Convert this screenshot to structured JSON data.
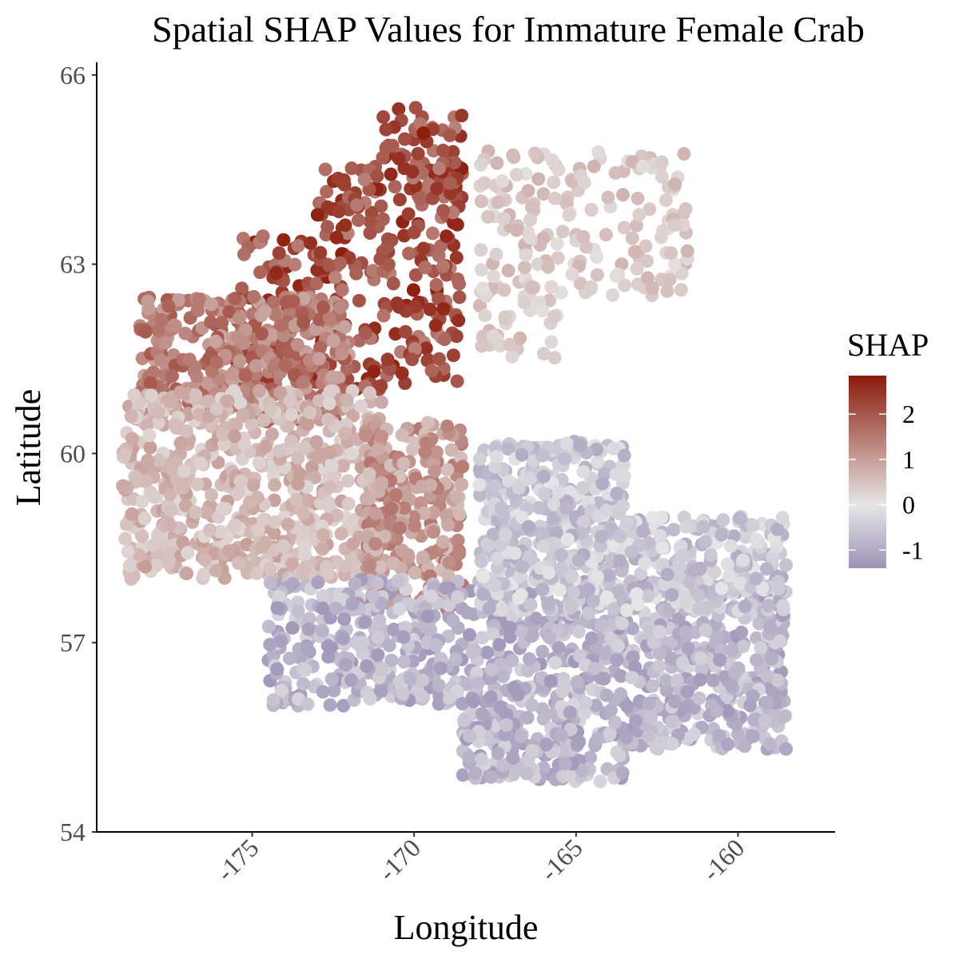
{
  "chart_data": {
    "type": "scatter",
    "title": "Spatial SHAP Values for Immature Female Crab",
    "xlabel": "Longitude",
    "ylabel": "Latitude",
    "xlim": [
      -179.8,
      -157.0
    ],
    "ylim": [
      54.0,
      66.2
    ],
    "x_ticks": [
      {
        "value": -175,
        "label": "-175"
      },
      {
        "value": -170,
        "label": "-170"
      },
      {
        "value": -165,
        "label": "-165"
      },
      {
        "value": -160,
        "label": "-160"
      }
    ],
    "y_ticks": [
      {
        "value": 54,
        "label": "54"
      },
      {
        "value": 57,
        "label": "57"
      },
      {
        "value": 60,
        "label": "60"
      },
      {
        "value": 63,
        "label": "63"
      },
      {
        "value": 66,
        "label": "66"
      }
    ],
    "grid": false,
    "color_scale": {
      "title": "SHAP",
      "min": -1.4,
      "max": 2.85,
      "low_color": "#9d93b7",
      "mid_color": "#e6e6e6",
      "high_color": "#8b1a0a",
      "ticks": [
        {
          "value": 2,
          "label": "2"
        },
        {
          "value": 1,
          "label": "1"
        },
        {
          "value": 0,
          "label": "0"
        },
        {
          "value": -1,
          "label": "-1"
        }
      ]
    },
    "legend_position": "right",
    "zones": [
      {
        "region": "north",
        "lon_range": [
          -175.5,
          -168.5
        ],
        "lat_range": [
          61.0,
          65.5
        ],
        "shap_range": [
          1.4,
          2.8
        ]
      },
      {
        "region": "northwest",
        "lon_range": [
          -178.5,
          -172.0
        ],
        "lat_range": [
          60.5,
          62.5
        ],
        "shap_range": [
          0.9,
          2.0
        ]
      },
      {
        "region": "west",
        "lon_range": [
          -179.0,
          -171.0
        ],
        "lat_range": [
          58.0,
          61.0
        ],
        "shap_range": [
          0.2,
          1.0
        ]
      },
      {
        "region": "central-tongue",
        "lon_range": [
          -171.5,
          -168.5
        ],
        "lat_range": [
          57.5,
          60.5
        ],
        "shap_range": [
          0.5,
          1.6
        ]
      },
      {
        "region": "northeast",
        "lon_range": [
          -168.0,
          -161.5
        ],
        "lat_range": [
          61.5,
          64.8
        ],
        "shap_range": [
          0.1,
          0.7
        ]
      },
      {
        "region": "south",
        "lon_range": [
          -174.5,
          -158.5
        ],
        "lat_range": [
          54.8,
          58.0
        ],
        "shap_range": [
          -1.3,
          -0.3
        ]
      },
      {
        "region": "east",
        "lon_range": [
          -168.0,
          -158.5
        ],
        "lat_range": [
          57.5,
          60.2
        ],
        "shap_range": [
          -1.0,
          0.0
        ]
      }
    ]
  }
}
